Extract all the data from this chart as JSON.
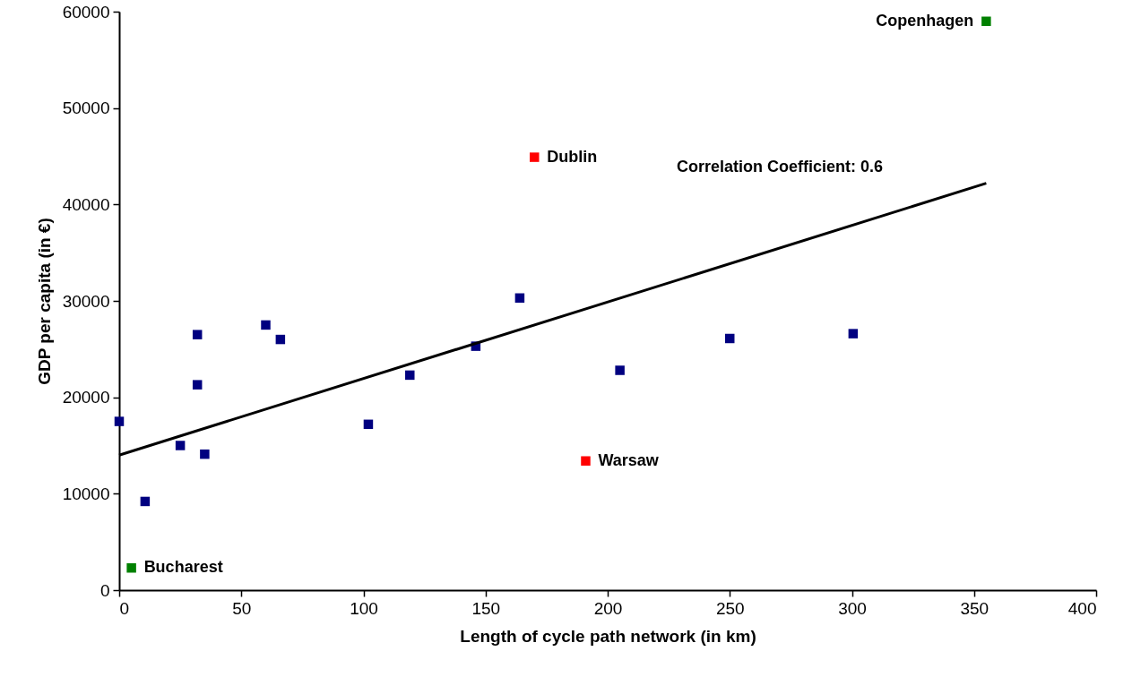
{
  "chart_data": {
    "type": "scatter",
    "xlabel": "Length of cycle path network (in km)",
    "ylabel": "GDP per capita (in €)",
    "xlim": [
      0,
      400
    ],
    "xticks": [
      0,
      50,
      100,
      150,
      200,
      250,
      300,
      350,
      400
    ],
    "ylim": [
      0,
      60000
    ],
    "yticks": [
      0,
      10000,
      20000,
      30000,
      40000,
      50000,
      60000
    ],
    "grid": false,
    "marker": "square",
    "series": [
      {
        "color": "#000080",
        "x": [
          0,
          10.6,
          25,
          32,
          32,
          35,
          60,
          66,
          102,
          119,
          146,
          164,
          205,
          250,
          300.5
        ],
        "values": [
          17500,
          9200,
          15000,
          26500,
          21300,
          14100,
          27500,
          26000,
          17200,
          22300,
          25300,
          30300,
          22800,
          26100,
          26600
        ]
      },
      {
        "color": "#ff0000",
        "x": [
          170,
          191
        ],
        "values": [
          44900,
          13400
        ]
      },
      {
        "color": "#008000",
        "x": [
          5,
          355
        ],
        "values": [
          2300,
          59000
        ]
      },
      {
        "type": "line",
        "color": "#000000",
        "marker": "none",
        "x": [
          0,
          355
        ],
        "values": [
          14000,
          42200
        ]
      }
    ],
    "annotations": [
      {
        "text": "Copenhagen",
        "x": 355,
        "y": 59000
      },
      {
        "text": "Dublin",
        "x": 170,
        "y": 44900
      },
      {
        "text": "Warsaw",
        "x": 191,
        "y": 13400
      },
      {
        "text": "Bucharest",
        "x": 5,
        "y": 2300
      },
      "Correlation Coefficient: 0.6"
    ]
  }
}
